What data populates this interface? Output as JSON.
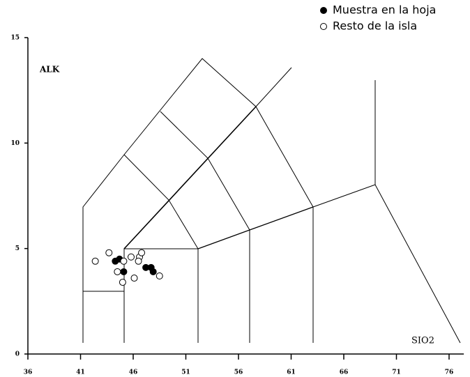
{
  "chart_data": {
    "type": "scatter",
    "x_label": "SIO2",
    "y_label": "ALK",
    "xlim": [
      36,
      77.4
    ],
    "ylim": [
      0,
      15
    ],
    "xticks": [
      36,
      41,
      46,
      51,
      56,
      61,
      66,
      71,
      76
    ],
    "yticks": [
      0,
      5,
      10,
      15
    ],
    "legend": "top-right",
    "series": [
      {
        "name": "Muestra en la hoja",
        "color": "#000000",
        "filled": true,
        "x": [
          44.3,
          44.7,
          45.1,
          47.2,
          47.7,
          47.9
        ],
        "values": [
          4.4,
          4.5,
          3.9,
          4.1,
          4.1,
          3.9
        ]
      },
      {
        "name": "Resto de la isla",
        "color": "#000000",
        "filled": false,
        "x": [
          43.7,
          42.4,
          45.1,
          44.5,
          45.0,
          45.8,
          46.6,
          46.8,
          46.5,
          46.1,
          48.5
        ],
        "values": [
          4.8,
          4.4,
          4.4,
          3.9,
          3.4,
          4.6,
          4.6,
          4.8,
          4.4,
          3.6,
          3.7
        ]
      }
    ]
  }
}
